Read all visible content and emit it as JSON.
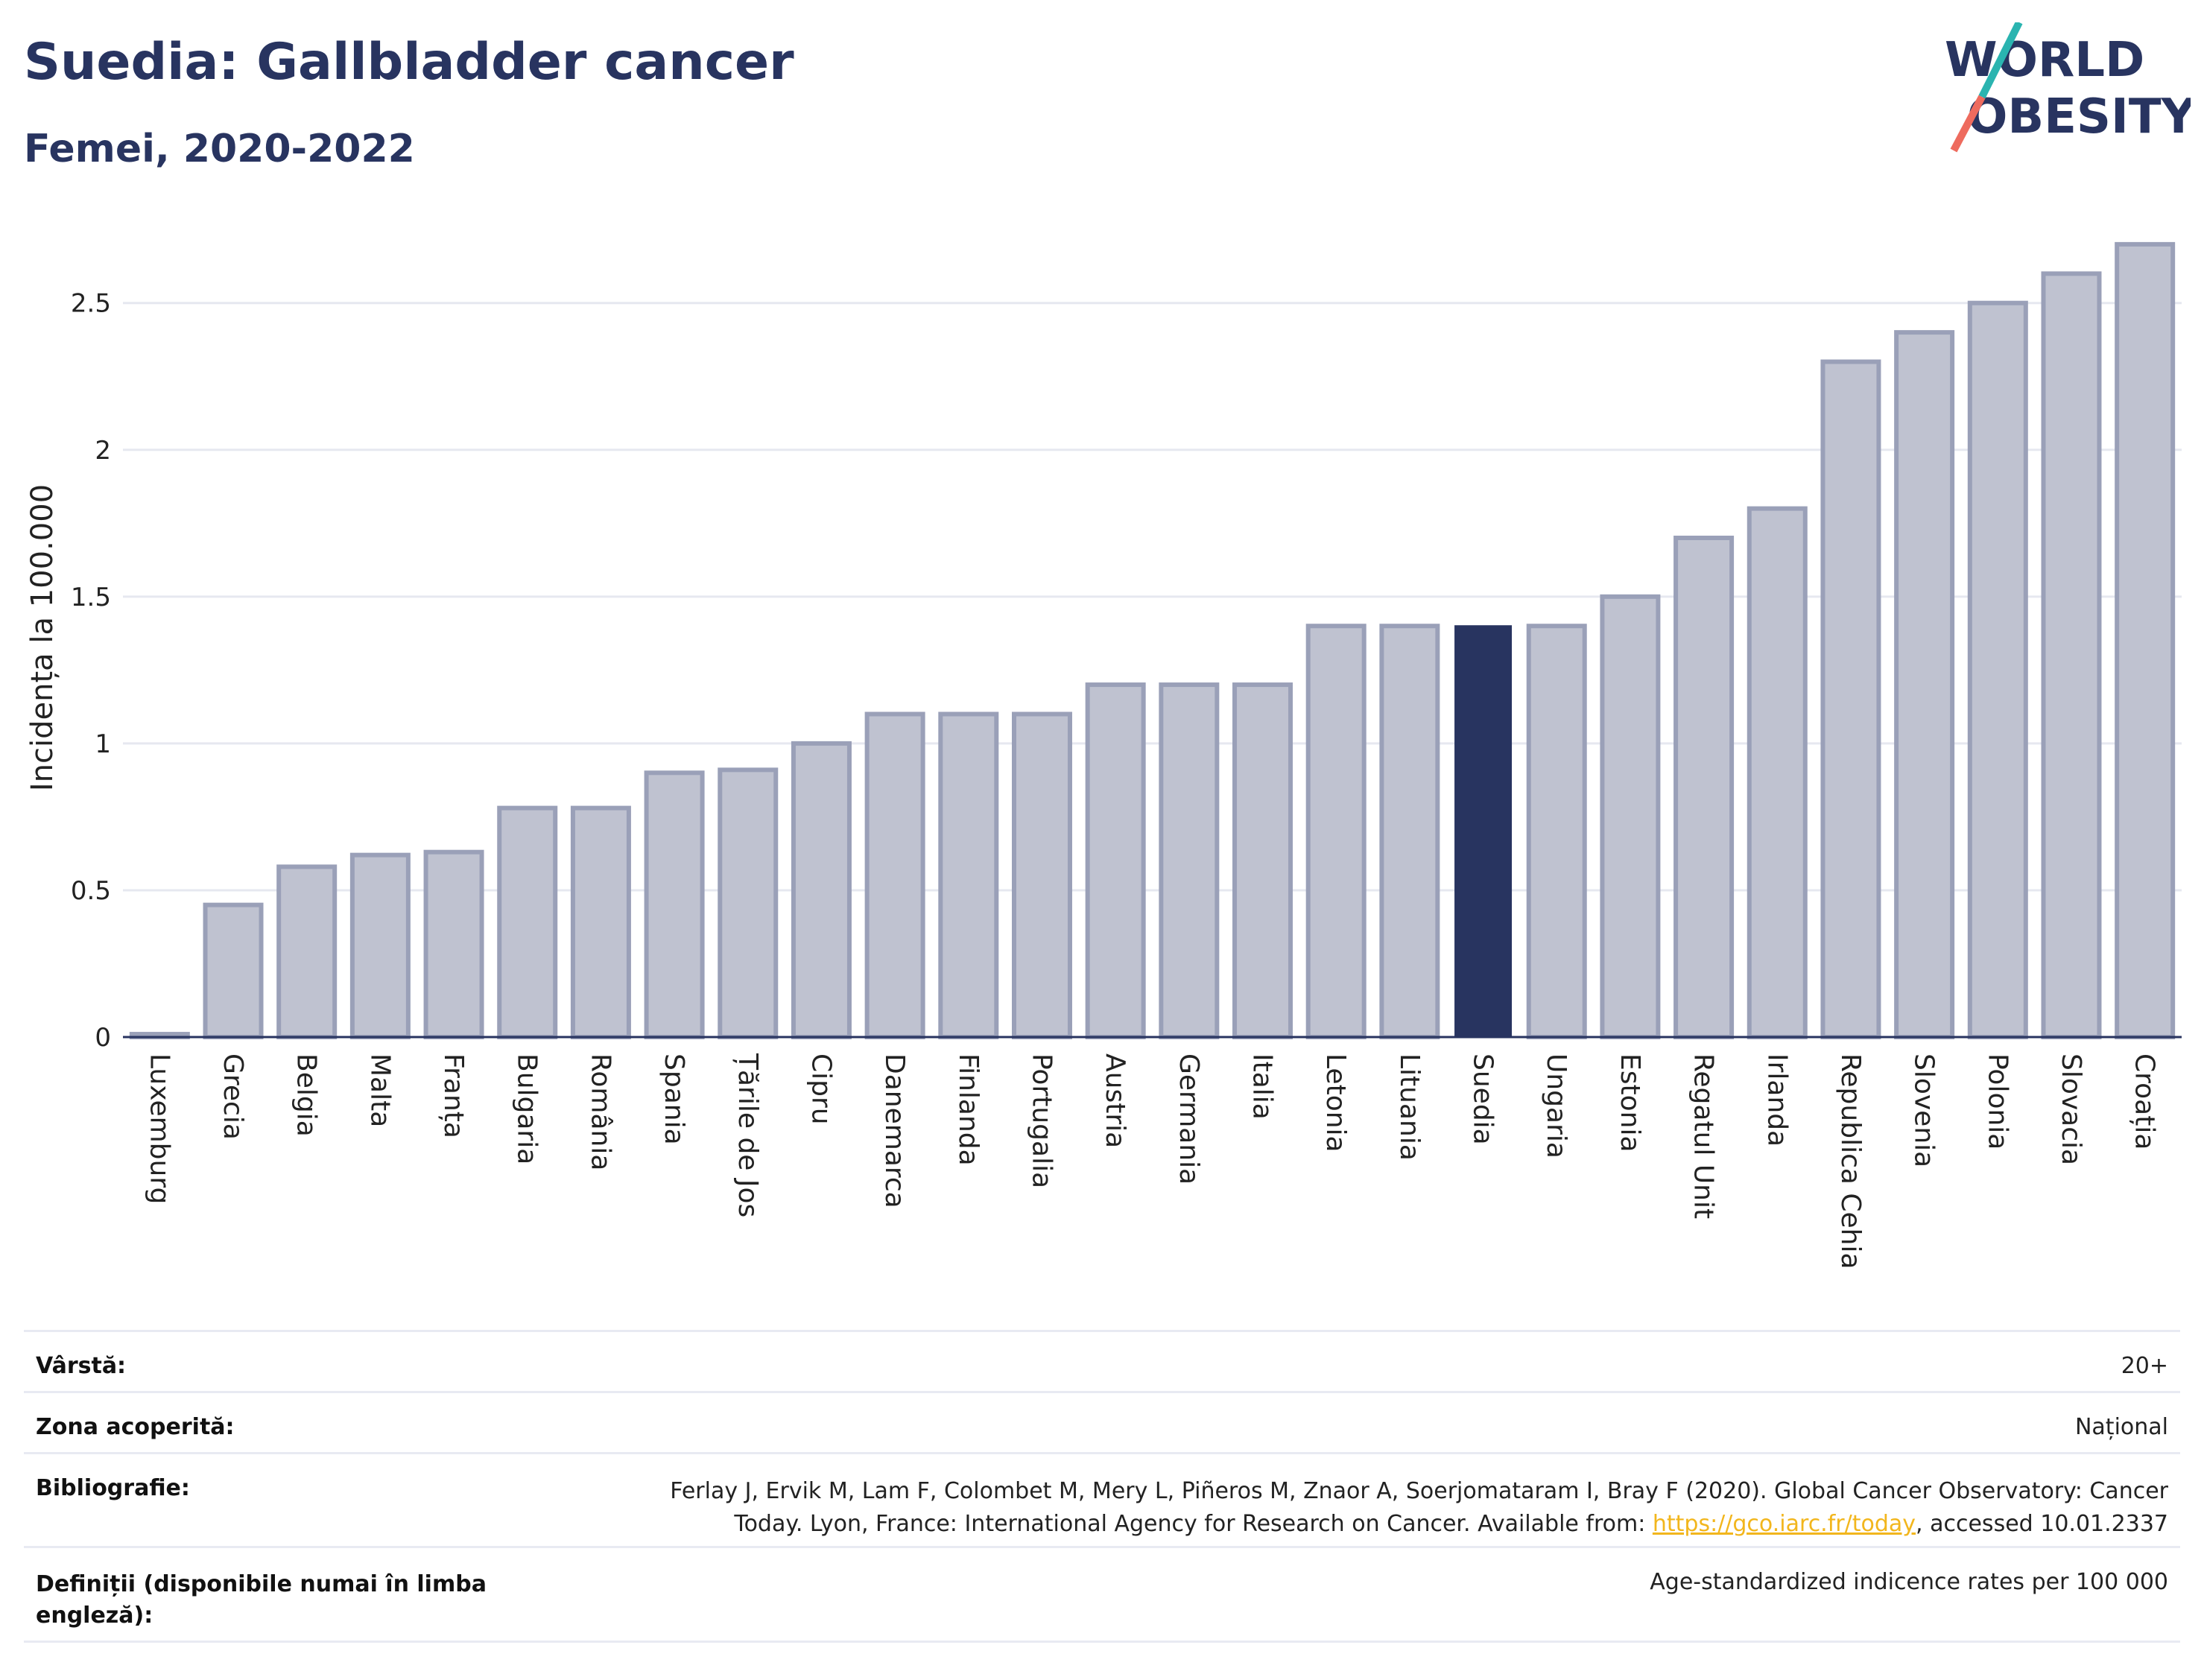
{
  "header": {
    "title": "Suedia: Gallbladder cancer",
    "subtitle": "Femei, 2020-2022"
  },
  "logo": {
    "line1": "WORLD",
    "line2": "OBESITY"
  },
  "chart_data": {
    "type": "bar",
    "ylabel": "Incidența la 100.000",
    "xlabel": "",
    "ylim": [
      0,
      2.72
    ],
    "yticks": [
      0,
      0.5,
      1,
      1.5,
      2,
      2.5
    ],
    "ytick_labels": [
      "0",
      "0.5",
      "1",
      "1.5",
      "2",
      "2.5"
    ],
    "grid": true,
    "highlight": "Suedia",
    "colors": {
      "bar": "#bfc2d0",
      "bar_edge": "#9aa0b8",
      "highlight": "#283460",
      "grid": "#e6e8f0"
    },
    "categories": [
      "Luxemburg",
      "Grecia",
      "Belgia",
      "Malta",
      "Franța",
      "Bulgaria",
      "România",
      "Spania",
      "Țările de Jos",
      "Cipru",
      "Danemarca",
      "Finlanda",
      "Portugalia",
      "Austria",
      "Germania",
      "Italia",
      "Letonia",
      "Lituania",
      "Suedia",
      "Ungaria",
      "Estonia",
      "Regatul Unit",
      "Irlanda",
      "Republica Cehia",
      "Slovenia",
      "Polonia",
      "Slovacia",
      "Croația"
    ],
    "values": [
      0.01,
      0.45,
      0.58,
      0.62,
      0.63,
      0.78,
      0.78,
      0.9,
      0.91,
      1.0,
      1.1,
      1.1,
      1.1,
      1.2,
      1.2,
      1.2,
      1.4,
      1.4,
      1.4,
      1.4,
      1.5,
      1.7,
      1.8,
      2.3,
      2.4,
      2.5,
      2.6,
      2.7
    ]
  },
  "meta": {
    "age": {
      "label": "Vârstă:",
      "value": "20+"
    },
    "area": {
      "label": "Zona acoperită:",
      "value": "Național"
    },
    "bibliography": {
      "label": "Bibliografie:",
      "line1": "Ferlay J, Ervik M, Lam F, Colombet M, Mery L, Piñeros M, Znaor A, Soerjomataram I, Bray F (2020). Global Cancer Observatory: Cancer",
      "line2_pre": "Today. Lyon, France: International Agency for Research on Cancer. Available from: ",
      "link": "https://gco.iarc.fr/today",
      "line2_post": ", accessed 10.01.2337"
    },
    "definitions": {
      "label": "Definiții (disponibile numai în limba engleză):",
      "value": "Age-standardized indicence rates per 100 000"
    }
  }
}
